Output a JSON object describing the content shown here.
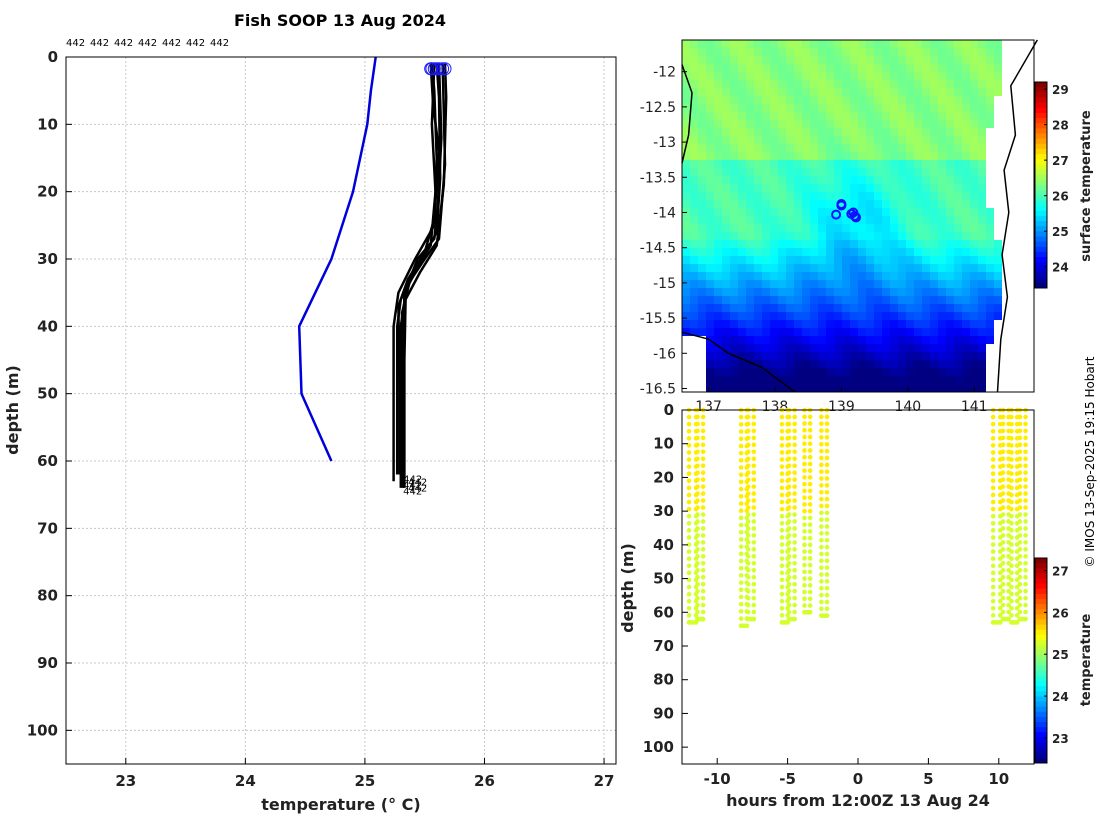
{
  "page_title": "Fish SOOP 13 Aug 2024",
  "copyright": "© IMOS 13-Sep-2025 19:15 Hobart",
  "profile_ids": [
    "442",
    "442",
    "442",
    "442",
    "442",
    "442",
    "442"
  ],
  "colors": {
    "profile_line": "#000000",
    "climatology_line": "#0000dd",
    "start_marker": "#1a1aff"
  },
  "chart_data": [
    {
      "id": "profile",
      "type": "line",
      "title": "Fish SOOP 13 Aug 2024",
      "xlabel": "temperature (° C)",
      "ylabel": "depth (m)",
      "xlim": [
        22.5,
        27.1
      ],
      "ylim": [
        0,
        105
      ],
      "y_inverted": true,
      "grid": true,
      "xticks": [
        23,
        24,
        25,
        26,
        27
      ],
      "yticks": [
        0,
        10,
        20,
        30,
        40,
        50,
        60,
        70,
        80,
        90,
        100
      ],
      "series": [
        {
          "name": "climatology",
          "color": "#0000dd",
          "points": [
            [
              25.09,
              0
            ],
            [
              25.05,
              5
            ],
            [
              25.02,
              10
            ],
            [
              24.9,
              20
            ],
            [
              24.72,
              30
            ],
            [
              24.45,
              40
            ],
            [
              24.47,
              50
            ],
            [
              24.72,
              60
            ]
          ]
        },
        {
          "name": "profile-1",
          "color": "#000000",
          "label": "442",
          "points": [
            [
              25.56,
              1
            ],
            [
              25.58,
              5
            ],
            [
              25.6,
              15
            ],
            [
              25.58,
              25
            ],
            [
              25.42,
              30
            ],
            [
              25.28,
              35
            ],
            [
              25.24,
              40
            ],
            [
              25.24,
              50
            ],
            [
              25.24,
              60
            ],
            [
              25.24,
              63
            ]
          ]
        },
        {
          "name": "profile-2",
          "color": "#000000",
          "label": "442",
          "points": [
            [
              25.6,
              1
            ],
            [
              25.62,
              6
            ],
            [
              25.63,
              18
            ],
            [
              25.6,
              26
            ],
            [
              25.45,
              31
            ],
            [
              25.3,
              36
            ],
            [
              25.27,
              40
            ],
            [
              25.27,
              55
            ],
            [
              25.27,
              62
            ]
          ]
        },
        {
          "name": "profile-3",
          "color": "#000000",
          "label": "442",
          "points": [
            [
              25.65,
              1
            ],
            [
              25.66,
              8
            ],
            [
              25.67,
              16
            ],
            [
              25.62,
              27
            ],
            [
              25.5,
              30
            ],
            [
              25.35,
              34
            ],
            [
              25.3,
              40
            ],
            [
              25.3,
              55
            ],
            [
              25.3,
              64
            ]
          ]
        },
        {
          "name": "profile-4",
          "color": "#000000",
          "label": "442",
          "points": [
            [
              25.58,
              1
            ],
            [
              25.56,
              10
            ],
            [
              25.59,
              20
            ],
            [
              25.55,
              28
            ],
            [
              25.38,
              33
            ],
            [
              25.31,
              38
            ],
            [
              25.31,
              50
            ],
            [
              25.31,
              63
            ]
          ]
        },
        {
          "name": "profile-5",
          "color": "#000000",
          "label": "442",
          "points": [
            [
              25.62,
              1
            ],
            [
              25.64,
              12
            ],
            [
              25.61,
              22
            ],
            [
              25.58,
              27
            ],
            [
              25.44,
              30
            ],
            [
              25.33,
              35
            ],
            [
              25.32,
              45
            ],
            [
              25.32,
              64
            ]
          ]
        },
        {
          "name": "profile-6",
          "color": "#000000",
          "label": "442",
          "points": [
            [
              25.55,
              1
            ],
            [
              25.57,
              7
            ],
            [
              25.62,
              14
            ],
            [
              25.58,
              24
            ],
            [
              25.5,
              29
            ],
            [
              25.36,
              33
            ],
            [
              25.28,
              37
            ],
            [
              25.29,
              50
            ],
            [
              25.29,
              62
            ]
          ]
        },
        {
          "name": "profile-7",
          "color": "#000000",
          "label": "442",
          "points": [
            [
              25.67,
              1
            ],
            [
              25.68,
              6
            ],
            [
              25.66,
              19
            ],
            [
              25.6,
              28
            ],
            [
              25.46,
              32
            ],
            [
              25.34,
              36
            ],
            [
              25.33,
              45
            ],
            [
              25.33,
              64
            ]
          ]
        }
      ],
      "markers": [
        [
          25.56,
          1
        ],
        [
          25.6,
          1
        ],
        [
          25.65,
          1
        ],
        [
          25.58,
          1
        ],
        [
          25.62,
          1
        ],
        [
          25.55,
          1
        ],
        [
          25.67,
          1
        ]
      ],
      "end_labels": [
        "442",
        "442",
        "442",
        "442",
        "442"
      ]
    },
    {
      "id": "map",
      "type": "heatmap",
      "xticks": [
        137,
        138,
        139,
        140,
        141
      ],
      "xtick_labels": [
        "137",
        "138",
        "139",
        "140",
        "141"
      ],
      "yticks": [
        -12,
        -12.5,
        -13,
        -13.5,
        -14,
        -14.5,
        -15,
        -15.5,
        -16,
        -16.5
      ],
      "xlim": [
        136.6,
        141.9
      ],
      "ylim": [
        -16.55,
        -11.55
      ],
      "colorbar": {
        "label": "surface temperature",
        "ticks": [
          24,
          25,
          26,
          27,
          28,
          29
        ],
        "range": [
          23.4,
          29.2
        ]
      },
      "track_points": [
        [
          139.0,
          -13.88
        ],
        [
          138.92,
          -14.03
        ],
        [
          139.18,
          -14.0
        ],
        [
          139.2,
          -14.05
        ],
        [
          139.22,
          -14.07
        ],
        [
          139.0,
          -13.9
        ],
        [
          139.15,
          -14.02
        ]
      ]
    },
    {
      "id": "time-depth",
      "type": "scatter",
      "xlabel": "hours from 12:00Z 13 Aug 24",
      "ylabel": "depth (m)",
      "xlim": [
        -12.5,
        12.5
      ],
      "ylim": [
        0,
        105
      ],
      "y_inverted": true,
      "xticks": [
        -10,
        -5,
        0,
        5,
        10
      ],
      "yticks": [
        0,
        10,
        20,
        30,
        40,
        50,
        60,
        70,
        80,
        90,
        100
      ],
      "colorbar": {
        "label": "temperature",
        "ticks": [
          23,
          24,
          25,
          26,
          27
        ],
        "range": [
          22.4,
          27.3
        ]
      },
      "casts": [
        {
          "t_down": -12.0,
          "t_up": -11.5,
          "max_depth": 63
        },
        {
          "t_down": -11.4,
          "t_up": -11.0,
          "max_depth": 62
        },
        {
          "t_down": -8.3,
          "t_up": -7.9,
          "max_depth": 64
        },
        {
          "t_down": -7.8,
          "t_up": -7.4,
          "max_depth": 62
        },
        {
          "t_down": -5.4,
          "t_up": -5.0,
          "max_depth": 63
        },
        {
          "t_down": -4.9,
          "t_up": -4.5,
          "max_depth": 62
        },
        {
          "t_down": -3.8,
          "t_up": -3.4,
          "max_depth": 60
        },
        {
          "t_down": -2.6,
          "t_up": -2.2,
          "max_depth": 61
        },
        {
          "t_down": 9.6,
          "t_up": 10.1,
          "max_depth": 63
        },
        {
          "t_down": 10.3,
          "t_up": 10.7,
          "max_depth": 62
        },
        {
          "t_down": 10.9,
          "t_up": 11.3,
          "max_depth": 63
        },
        {
          "t_down": 11.5,
          "t_up": 11.9,
          "max_depth": 62
        }
      ]
    }
  ]
}
